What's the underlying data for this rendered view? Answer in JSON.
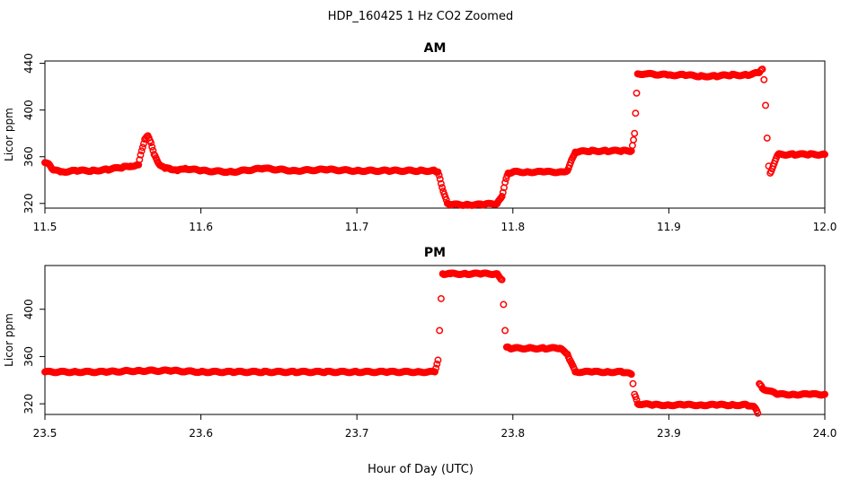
{
  "figure": {
    "title": "HDP_160425  1 Hz CO2 Zoomed",
    "xlabel": "Hour of Day (UTC)"
  },
  "colors": {
    "point": "#ff0000",
    "axis": "#000000",
    "background": "#ffffff"
  },
  "chart_data": [
    {
      "type": "scatter",
      "title": "AM",
      "xlabel": "",
      "ylabel": "Licor ppm",
      "xlim": [
        11.5,
        12.0
      ],
      "ylim": [
        316,
        442
      ],
      "xticks": [
        11.5,
        11.6,
        11.7,
        11.8,
        11.9,
        12.0
      ],
      "xtick_labels": [
        "11.5",
        "11.6",
        "11.7",
        "11.8",
        "11.9",
        "12.0"
      ],
      "yticks": [
        320,
        360,
        400,
        440
      ],
      "ytick_labels": [
        "320",
        "360",
        "400",
        "440"
      ],
      "grid": false,
      "series": [
        {
          "x": [
            11.5,
            11.503,
            11.505,
            11.51,
            11.52,
            11.53,
            11.54,
            11.55,
            11.555,
            11.56,
            11.562,
            11.564,
            11.566,
            11.568,
            11.57,
            11.573,
            11.577,
            11.58,
            11.585,
            11.59,
            11.6,
            11.62,
            11.64,
            11.66,
            11.68,
            11.7,
            11.72,
            11.74,
            11.75,
            11.752,
            11.754,
            11.756,
            11.758,
            11.76,
            11.77,
            11.78,
            11.79,
            11.793,
            11.795,
            11.797,
            11.8,
            11.81,
            11.82,
            11.83,
            11.835,
            11.837,
            11.84,
            11.85,
            11.86,
            11.87,
            11.876,
            11.878,
            11.88,
            11.885,
            11.9,
            11.91,
            11.92,
            11.93,
            11.94,
            11.95,
            11.958,
            11.96,
            11.961,
            11.962,
            11.963,
            11.964,
            11.965,
            11.97,
            11.98,
            11.99,
            12.0
          ],
          "y": [
            355,
            353,
            349,
            347,
            348,
            348,
            349,
            351,
            352,
            353,
            365,
            375,
            378,
            372,
            362,
            354,
            350,
            350,
            348,
            350,
            348,
            347,
            350,
            348,
            349,
            348,
            348,
            348,
            348,
            347,
            337,
            328,
            320,
            319,
            319,
            319,
            320,
            326,
            338,
            346,
            347,
            347,
            347,
            347,
            348,
            355,
            364,
            365,
            365,
            365,
            365,
            380,
            431,
            431,
            430,
            430,
            429,
            429,
            430,
            430,
            432,
            435,
            426,
            404,
            376,
            352,
            346,
            362,
            362,
            362,
            362
          ]
        }
      ]
    },
    {
      "type": "scatter",
      "title": "PM",
      "xlabel": "",
      "ylabel": "Licor ppm",
      "xlim": [
        23.5,
        24.0
      ],
      "ylim": [
        311,
        437
      ],
      "xticks": [
        23.5,
        23.6,
        23.7,
        23.8,
        23.9,
        24.0
      ],
      "xtick_labels": [
        "23.5",
        "23.6",
        "23.7",
        "23.8",
        "23.9",
        "24.0"
      ],
      "yticks": [
        320,
        360,
        400
      ],
      "ytick_labels": [
        "320",
        "360",
        "400"
      ],
      "grid": false,
      "series": [
        {
          "x": [
            23.5,
            23.52,
            23.54,
            23.56,
            23.58,
            23.6,
            23.62,
            23.64,
            23.66,
            23.68,
            23.7,
            23.72,
            23.74,
            23.75,
            23.752,
            23.753,
            23.754,
            23.755,
            23.76,
            23.77,
            23.78,
            23.79,
            23.793,
            23.794,
            23.795,
            23.796,
            23.798,
            23.81,
            23.82,
            23.83,
            23.835,
            23.837,
            23.84,
            23.85,
            23.86,
            23.87,
            23.876,
            23.877,
            23.878,
            23.88,
            23.89,
            23.9,
            23.91,
            23.92,
            23.93,
            23.94,
            23.95,
            23.955,
            23.957,
            23.958,
            23.96,
            23.97,
            23.98,
            23.99,
            24.0
          ],
          "y": [
            347,
            347,
            347,
            348,
            348,
            347,
            347,
            347,
            347,
            347,
            347,
            347,
            347,
            347,
            357,
            382,
            409,
            430,
            430,
            430,
            430,
            430,
            425,
            404,
            382,
            368,
            367,
            367,
            367,
            367,
            362,
            356,
            347,
            347,
            347,
            347,
            345,
            337,
            328,
            320,
            319,
            319,
            319,
            319,
            319,
            319,
            319,
            317,
            312,
            337,
            333,
            328,
            328,
            328,
            328
          ]
        }
      ]
    }
  ]
}
